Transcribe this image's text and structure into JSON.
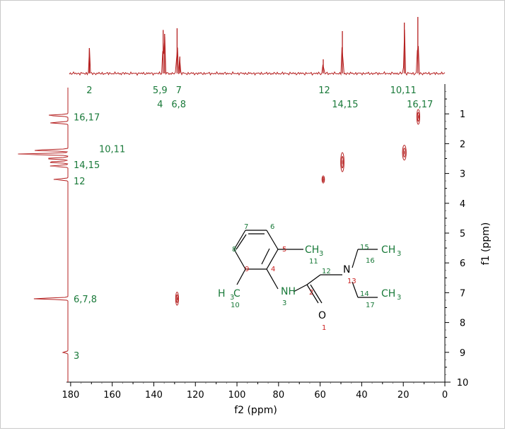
{
  "chart_data": {
    "type": "heatmap",
    "subtype": "2D NMR HSQC correlation spectrum",
    "xlabel": "f2 (ppm)",
    "ylabel": "f1 (ppm)",
    "xlim": [
      182,
      0
    ],
    "ylim": [
      0,
      10
    ],
    "x_ticks": [
      180,
      160,
      140,
      120,
      100,
      80,
      60,
      40,
      20,
      0
    ],
    "y_ticks": [
      1,
      2,
      3,
      4,
      5,
      6,
      7,
      8,
      9,
      10
    ],
    "color": "#b52020",
    "label_color": "#1a7a3a",
    "top_projection": {
      "peaks": [
        {
          "x": 171,
          "height": 0.45
        },
        {
          "x": 135.5,
          "height": 0.77
        },
        {
          "x": 134.8,
          "height": 0.7
        },
        {
          "x": 128.8,
          "height": 0.8
        },
        {
          "x": 127.5,
          "height": 0.3
        },
        {
          "x": 58.5,
          "height": 0.25
        },
        {
          "x": 49.3,
          "height": 0.75
        },
        {
          "x": 19.5,
          "height": 0.9
        },
        {
          "x": 13.0,
          "height": 1.0
        }
      ],
      "labels": [
        {
          "text": "2",
          "x": 171,
          "row": 1
        },
        {
          "text": "5,9",
          "x": 137,
          "row": 1
        },
        {
          "text": "7",
          "x": 128,
          "row": 1
        },
        {
          "text": "12",
          "x": 58,
          "row": 1
        },
        {
          "text": "10,11",
          "x": 20,
          "row": 1
        },
        {
          "text": "4",
          "x": 137,
          "row": 2
        },
        {
          "text": "6,8",
          "x": 128,
          "row": 2
        },
        {
          "text": "14,15",
          "x": 48,
          "row": 2
        },
        {
          "text": "16,17",
          "x": 12,
          "row": 2
        }
      ]
    },
    "left_projection": {
      "peaks": [
        {
          "y": 1.05,
          "height": 0.4
        },
        {
          "y": 1.3,
          "height": 0.35
        },
        {
          "y": 2.22,
          "height": 0.7
        },
        {
          "y": 2.35,
          "height": 1.0
        },
        {
          "y": 2.5,
          "height": 0.45
        },
        {
          "y": 2.62,
          "height": 0.4
        },
        {
          "y": 2.75,
          "height": 0.35
        },
        {
          "y": 3.2,
          "height": 0.28
        },
        {
          "y": 7.2,
          "height": 0.68
        },
        {
          "y": 9.0,
          "height": 0.1
        }
      ],
      "labels": [
        {
          "text": "16,17",
          "y": 1.1
        },
        {
          "text": "10,11",
          "y": 2.4,
          "offset": true
        },
        {
          "text": "14,15",
          "y": 2.7
        },
        {
          "text": "12",
          "y": 3.25
        },
        {
          "text": "6,7,8",
          "y": 7.2
        },
        {
          "text": "3",
          "y": 9.1
        }
      ]
    },
    "cross_peaks": [
      {
        "x": 128.8,
        "y": 7.2,
        "rx_ppm": 0.7,
        "ry_ppm": 0.22
      },
      {
        "x": 58.5,
        "y": 3.2,
        "rx_ppm": 0.6,
        "ry_ppm": 0.12
      },
      {
        "x": 49.3,
        "y": 2.62,
        "rx_ppm": 0.8,
        "ry_ppm": 0.32
      },
      {
        "x": 19.5,
        "y": 2.3,
        "rx_ppm": 0.9,
        "ry_ppm": 0.25
      },
      {
        "x": 12.8,
        "y": 1.1,
        "rx_ppm": 0.7,
        "ry_ppm": 0.25
      }
    ],
    "molecule": {
      "atoms": [
        {
          "text": "7",
          "cls": "green",
          "size": 10
        },
        {
          "text": "6",
          "cls": "green",
          "size": 10
        },
        {
          "text": "8",
          "cls": "green",
          "size": 10
        },
        {
          "text": "5",
          "cls": "red",
          "size": 10
        },
        {
          "text": "9",
          "cls": "red",
          "size": 10
        },
        {
          "text": "4",
          "cls": "red",
          "size": 10
        },
        {
          "text": "CH",
          "cls": "green",
          "size": 14
        },
        {
          "text": "3",
          "cls": "green",
          "size": 10
        },
        {
          "text": "11",
          "cls": "green",
          "size": 10
        },
        {
          "text": "15",
          "cls": "green",
          "size": 10
        },
        {
          "text": "CH",
          "cls": "green",
          "size": 14
        },
        {
          "text": "3",
          "cls": "green",
          "size": 10
        },
        {
          "text": "16",
          "cls": "green",
          "size": 10
        },
        {
          "text": "12",
          "cls": "green",
          "size": 10
        },
        {
          "text": "N",
          "cls": "black",
          "size": 14
        },
        {
          "text": "13",
          "cls": "red",
          "size": 10
        },
        {
          "text": "H",
          "cls": "green",
          "size": 14
        },
        {
          "text": "3",
          "cls": "green",
          "size": 10
        },
        {
          "text": "C",
          "cls": "green",
          "size": 14
        },
        {
          "text": "10",
          "cls": "green",
          "size": 10
        },
        {
          "text": "NH",
          "cls": "green",
          "size": 14
        },
        {
          "text": "3",
          "cls": "green",
          "size": 10
        },
        {
          "text": "2",
          "cls": "red",
          "size": 10
        },
        {
          "text": "14",
          "cls": "green",
          "size": 10
        },
        {
          "text": "CH",
          "cls": "green",
          "size": 14
        },
        {
          "text": "3",
          "cls": "green",
          "size": 10
        },
        {
          "text": "17",
          "cls": "green",
          "size": 10
        },
        {
          "text": "O",
          "cls": "black",
          "size": 14
        },
        {
          "text": "1",
          "cls": "red",
          "size": 10
        }
      ]
    }
  }
}
